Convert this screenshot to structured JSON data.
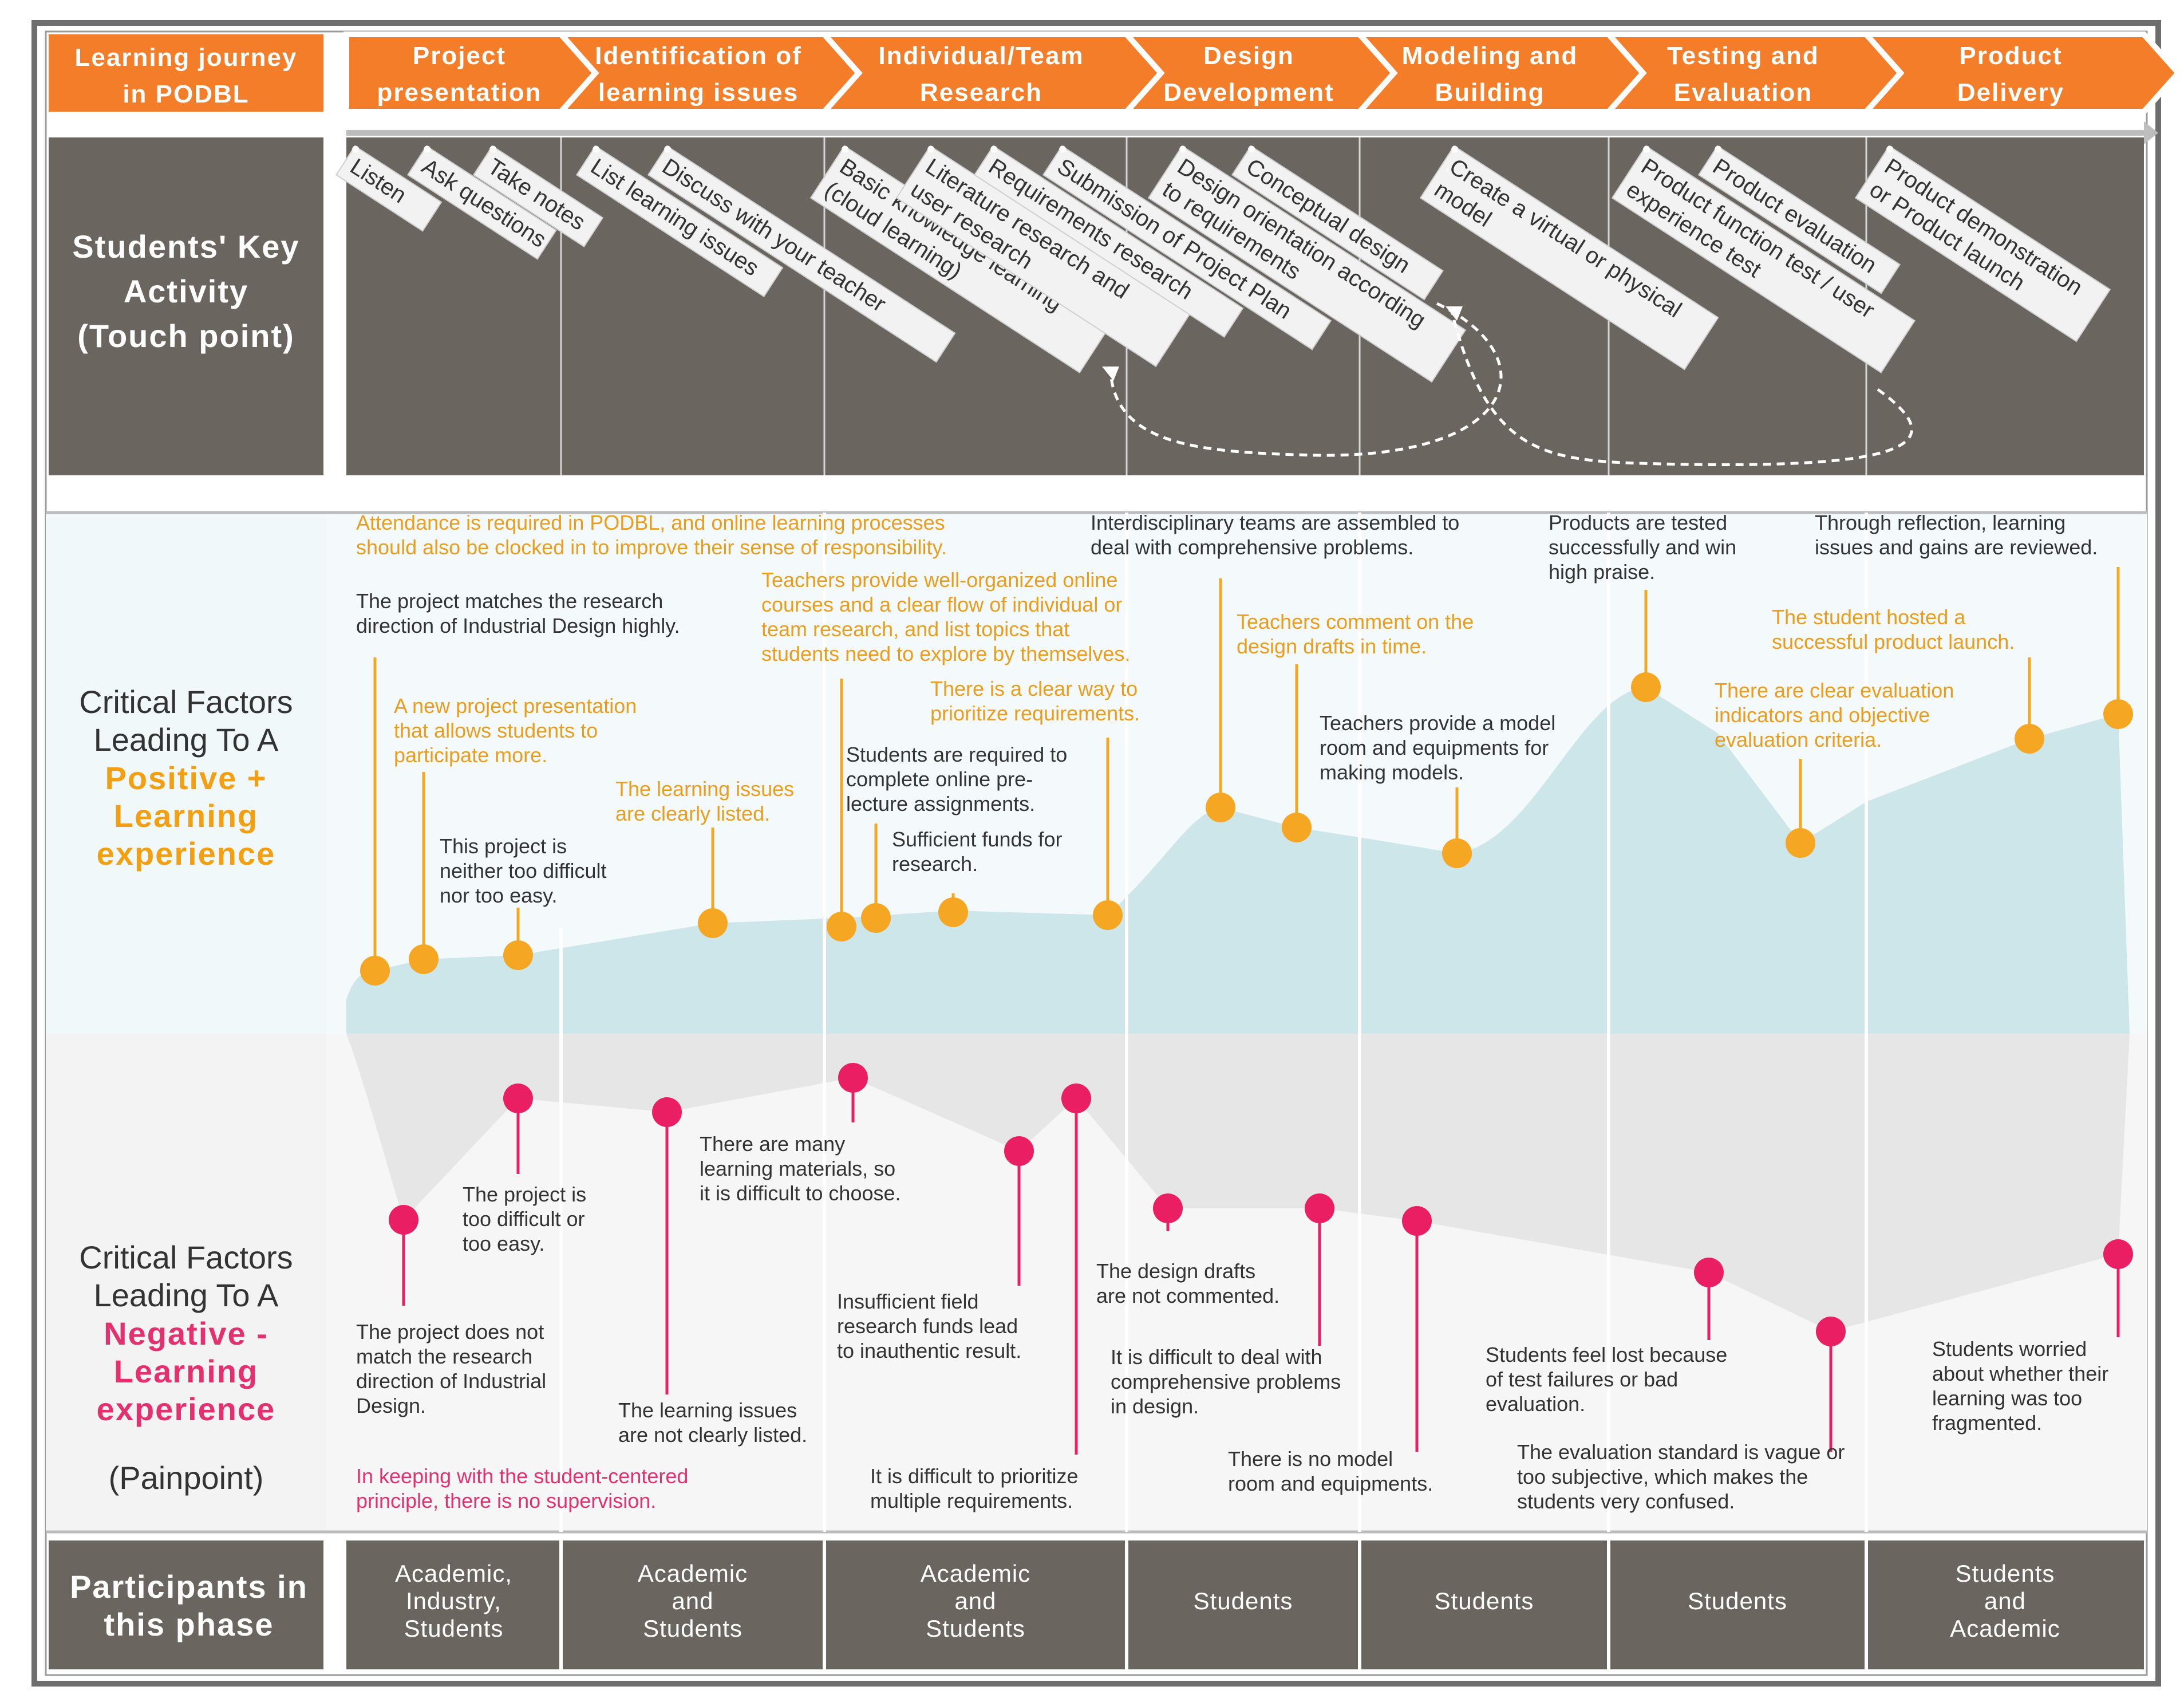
{
  "colors": {
    "orange": "#f47d2a",
    "dark_gray": "#6b6560",
    "light_blue": "#cde6ea",
    "light_gray": "#e8e8e8",
    "marker_orange": "#f5a623",
    "marker_pink": "#e91e63",
    "text_orange": "#ea9d1c",
    "text_pink": "#e4306f"
  },
  "header": {
    "journey_label": [
      "Learning journey",
      "in PODBL"
    ],
    "phases": [
      {
        "label": [
          "Project",
          "presentation"
        ]
      },
      {
        "label": [
          "Identification of",
          "learning issues"
        ]
      },
      {
        "label": [
          "Individual/Team",
          "Research"
        ]
      },
      {
        "label": [
          "Design",
          "Development"
        ]
      },
      {
        "label": [
          "Modeling and",
          "Building"
        ]
      },
      {
        "label": [
          "Testing and",
          "Evaluation"
        ]
      },
      {
        "label": [
          "Product",
          "Delivery"
        ]
      }
    ]
  },
  "key_activity": {
    "label": [
      "Students' Key",
      "Activity",
      "(Touch point)"
    ],
    "activities": [
      {
        "text": [
          "Listen"
        ]
      },
      {
        "text": [
          "Ask questions"
        ]
      },
      {
        "text": [
          "Take notes"
        ]
      },
      {
        "text": [
          "List learning issues"
        ]
      },
      {
        "text": [
          "Discuss with your teacher"
        ]
      },
      {
        "text": [
          "Basic knowledge learning",
          "(cloud learning)"
        ]
      },
      {
        "text": [
          "Literature research and",
          "user research"
        ]
      },
      {
        "text": [
          "Requirements research"
        ]
      },
      {
        "text": [
          "Submission of Project Plan"
        ]
      },
      {
        "text": [
          "Design orientation according",
          "to requirements"
        ]
      },
      {
        "text": [
          "Conceptual design"
        ]
      },
      {
        "text": [
          "Create a virtual or physical",
          "model"
        ]
      },
      {
        "text": [
          "Product function test / user",
          "experience test"
        ]
      },
      {
        "text": [
          "Product evaluation"
        ]
      },
      {
        "text": [
          "Product demonstration",
          "or Product launch"
        ]
      }
    ]
  },
  "positive": {
    "label_line1": "Critical Factors",
    "label_line2": "Leading To A",
    "label_accent": [
      "Positive +",
      "Learning",
      "experience"
    ],
    "annotations": [
      {
        "text": [
          "Attendance is required in PODBL, and online learning processes",
          "should also be clocked in to improve their sense of responsibility."
        ],
        "style": "orange"
      },
      {
        "text": [
          "The  project matches the research",
          "direction of Industrial Design highly."
        ],
        "style": "dark"
      },
      {
        "text": [
          "A new project presentation",
          "that allows students to",
          "participate more."
        ],
        "style": "orange"
      },
      {
        "text": [
          "This project is",
          "neither too difficult",
          "nor too easy."
        ],
        "style": "dark"
      },
      {
        "text": [
          "The learning issues",
          "are clearly listed."
        ],
        "style": "orange"
      },
      {
        "text": [
          "Teachers provide well-organized online",
          "courses and a clear flow of individual or",
          "team research, and list topics that",
          "students need to explore by themselves."
        ],
        "style": "orange"
      },
      {
        "text": [
          "Students are required to",
          "complete online pre-",
          "lecture assignments."
        ],
        "style": "dark"
      },
      {
        "text": [
          "Sufficient funds  for",
          "research."
        ],
        "style": "dark"
      },
      {
        "text": [
          "There is a clear way to",
          "prioritize requirements."
        ],
        "style": "orange"
      },
      {
        "text": [
          "Interdisciplinary teams are assembled to",
          "deal with comprehensive problems."
        ],
        "style": "dark"
      },
      {
        "text": [
          "Teachers comment on the",
          "design drafts in time."
        ],
        "style": "orange"
      },
      {
        "text": [
          "Teachers provide a model",
          "room and equipments for",
          "making models."
        ],
        "style": "dark"
      },
      {
        "text": [
          "Products are tested",
          "successfully and  win",
          "high praise."
        ],
        "style": "dark"
      },
      {
        "text": [
          "There are clear evaluation",
          "indicators and objective",
          "evaluation criteria."
        ],
        "style": "orange"
      },
      {
        "text": [
          "The student hosted a",
          "successful product launch."
        ],
        "style": "orange"
      },
      {
        "text": [
          "Through reflection, learning",
          "issues and gains are reviewed."
        ],
        "style": "dark"
      }
    ]
  },
  "negative": {
    "label_line1": "Critical Factors",
    "label_line2": "Leading To A",
    "label_accent": [
      "Negative -",
      "Learning",
      "experience"
    ],
    "label_painpoint": "(Painpoint)",
    "annotations": [
      {
        "text": [
          "The project is",
          "too difficult or",
          "too easy."
        ],
        "style": "dark"
      },
      {
        "text": [
          "The  project  does not",
          "match the research",
          "direction of Industrial",
          "Design."
        ],
        "style": "dark"
      },
      {
        "text": [
          "In keeping with the student-centered",
          "principle, there is no supervision."
        ],
        "style": "pink"
      },
      {
        "text": [
          "The learning issues",
          "are not clearly listed."
        ],
        "style": "dark"
      },
      {
        "text": [
          "There are many",
          "learning materials, so",
          "it is difficult to choose."
        ],
        "style": "dark"
      },
      {
        "text": [
          "Insufficient field",
          "research funds lead",
          "to inauthentic result."
        ],
        "style": "dark"
      },
      {
        "text": [
          "It is difficult to prioritize",
          "multiple requirements."
        ],
        "style": "dark"
      },
      {
        "text": [
          "The design drafts",
          "are not commented."
        ],
        "style": "dark"
      },
      {
        "text": [
          "It is difficult to deal with",
          "comprehensive problems",
          "in design."
        ],
        "style": "dark"
      },
      {
        "text": [
          "There is no model",
          "room and equipments."
        ],
        "style": "dark"
      },
      {
        "text": [
          "Students feel lost because",
          "of test failures or bad",
          "evaluation."
        ],
        "style": "dark"
      },
      {
        "text": [
          "The evaluation standard is vague or",
          "too subjective, which makes the",
          "students very confused."
        ],
        "style": "dark"
      },
      {
        "text": [
          "Students worried",
          "about whether their",
          "learning was too",
          "fragmented."
        ],
        "style": "dark"
      }
    ]
  },
  "participants": {
    "label": [
      "Participants in",
      "this phase"
    ],
    "cells": [
      {
        "text": [
          "Academic,",
          "Industry,",
          "Students"
        ]
      },
      {
        "text": [
          "Academic",
          "and",
          "Students"
        ]
      },
      {
        "text": [
          "Academic",
          "and",
          "Students"
        ]
      },
      {
        "text": [
          "Students"
        ]
      },
      {
        "text": [
          "Students"
        ]
      },
      {
        "text": [
          "Students"
        ]
      },
      {
        "text": [
          "Students",
          "and",
          "Academic"
        ]
      }
    ]
  }
}
